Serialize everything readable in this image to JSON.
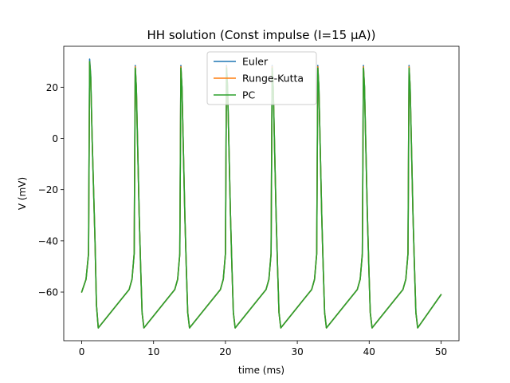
{
  "chart_data": {
    "type": "line",
    "title": "HH solution (Const impulse (I=15 μA))",
    "xlabel": "time (ms)",
    "ylabel": "V (mV)",
    "xlim": [
      -2.5,
      52.5
    ],
    "ylim": [
      -79,
      36
    ],
    "xticks": [
      0,
      10,
      20,
      30,
      40,
      50
    ],
    "yticks": [
      -60,
      -40,
      -20,
      0,
      20
    ],
    "xtick_labels": [
      "0",
      "10",
      "20",
      "30",
      "40",
      "50"
    ],
    "ytick_labels": [
      "−60",
      "−40",
      "−20",
      "0",
      "20"
    ],
    "grid": false,
    "legend_position": "top-center",
    "series": [
      {
        "name": "Euler",
        "color": "#1f77b4",
        "x": [
          0,
          0.6,
          0.95,
          1.1,
          1.25,
          1.45,
          1.65,
          1.85,
          2.05,
          2.3,
          6.6,
          7.0,
          7.3,
          7.45,
          7.6,
          7.8,
          8.0,
          8.2,
          8.4,
          8.65,
          12.95,
          13.35,
          13.65,
          13.8,
          13.95,
          14.15,
          14.35,
          14.55,
          14.75,
          15.0,
          19.3,
          19.7,
          20.0,
          20.15,
          20.3,
          20.5,
          20.7,
          20.9,
          21.1,
          21.35,
          25.65,
          26.05,
          26.35,
          26.5,
          26.65,
          26.85,
          27.05,
          27.25,
          27.45,
          27.7,
          32.0,
          32.4,
          32.7,
          32.85,
          33.0,
          33.2,
          33.4,
          33.6,
          33.8,
          34.05,
          38.35,
          38.75,
          39.05,
          39.2,
          39.35,
          39.55,
          39.75,
          39.95,
          40.15,
          40.4,
          44.7,
          45.1,
          45.4,
          45.55,
          45.7,
          45.9,
          46.1,
          46.3,
          46.5,
          46.75,
          50
        ],
        "y": [
          -60,
          -55,
          -45,
          31,
          25,
          0,
          -20,
          -40,
          -65,
          -74,
          -59,
          -55,
          -45,
          28.5,
          20,
          -5,
          -30,
          -50,
          -68,
          -74,
          -59,
          -55,
          -45,
          28.5,
          20,
          -5,
          -30,
          -50,
          -68,
          -74,
          -59,
          -55,
          -45,
          28.5,
          20,
          -5,
          -30,
          -50,
          -68,
          -74,
          -59,
          -55,
          -45,
          28.5,
          20,
          -5,
          -30,
          -50,
          -68,
          -74,
          -59,
          -55,
          -45,
          28.5,
          20,
          -5,
          -30,
          -50,
          -68,
          -74,
          -59,
          -55,
          -45,
          28.5,
          20,
          -5,
          -30,
          -50,
          -68,
          -74,
          -59,
          -55,
          -45,
          28.5,
          20,
          -5,
          -30,
          -50,
          -68,
          -74,
          -61
        ]
      },
      {
        "name": "Runge-Kutta",
        "color": "#ff7f0e",
        "x": [
          0,
          0.6,
          0.95,
          1.1,
          1.25,
          1.45,
          1.65,
          1.85,
          2.05,
          2.3,
          6.6,
          7.0,
          7.3,
          7.45,
          7.6,
          7.8,
          8.0,
          8.2,
          8.4,
          8.65,
          12.95,
          13.35,
          13.65,
          13.8,
          13.95,
          14.15,
          14.35,
          14.55,
          14.75,
          15.0,
          19.3,
          19.7,
          20.0,
          20.15,
          20.3,
          20.5,
          20.7,
          20.9,
          21.1,
          21.35,
          25.65,
          26.05,
          26.35,
          26.5,
          26.65,
          26.85,
          27.05,
          27.25,
          27.45,
          27.7,
          32.0,
          32.4,
          32.7,
          32.85,
          33.0,
          33.2,
          33.4,
          33.6,
          33.8,
          34.05,
          38.35,
          38.75,
          39.05,
          39.2,
          39.35,
          39.55,
          39.75,
          39.95,
          40.15,
          40.4,
          44.7,
          45.1,
          45.4,
          45.55,
          45.7,
          45.9,
          46.1,
          46.3,
          46.5,
          46.75,
          50
        ],
        "y": [
          -60,
          -55,
          -45,
          30,
          24,
          0,
          -20,
          -40,
          -65,
          -74,
          -59,
          -55,
          -45,
          28,
          20,
          -5,
          -30,
          -50,
          -68,
          -74,
          -59,
          -55,
          -45,
          28,
          20,
          -5,
          -30,
          -50,
          -68,
          -74,
          -59,
          -55,
          -45,
          28,
          20,
          -5,
          -30,
          -50,
          -68,
          -74,
          -59,
          -55,
          -45,
          28,
          20,
          -5,
          -30,
          -50,
          -68,
          -74,
          -59,
          -55,
          -45,
          28,
          20,
          -5,
          -30,
          -50,
          -68,
          -74,
          -59,
          -55,
          -45,
          28,
          20,
          -5,
          -30,
          -50,
          -68,
          -74,
          -59,
          -55,
          -45,
          28,
          20,
          -5,
          -30,
          -50,
          -68,
          -74,
          -61
        ]
      },
      {
        "name": "PC",
        "color": "#2ca02c",
        "x": [
          0,
          0.6,
          0.95,
          1.1,
          1.25,
          1.45,
          1.65,
          1.85,
          2.05,
          2.3,
          6.6,
          7.0,
          7.3,
          7.45,
          7.6,
          7.8,
          8.0,
          8.2,
          8.4,
          8.65,
          12.95,
          13.35,
          13.65,
          13.8,
          13.95,
          14.15,
          14.35,
          14.55,
          14.75,
          15.0,
          19.3,
          19.7,
          20.0,
          20.15,
          20.3,
          20.5,
          20.7,
          20.9,
          21.1,
          21.35,
          25.65,
          26.05,
          26.35,
          26.5,
          26.65,
          26.85,
          27.05,
          27.25,
          27.45,
          27.7,
          32.0,
          32.4,
          32.7,
          32.85,
          33.0,
          33.2,
          33.4,
          33.6,
          33.8,
          34.05,
          38.35,
          38.75,
          39.05,
          39.2,
          39.35,
          39.55,
          39.75,
          39.95,
          40.15,
          40.4,
          44.7,
          45.1,
          45.4,
          45.55,
          45.7,
          45.9,
          46.1,
          46.3,
          46.5,
          46.75,
          50
        ],
        "y": [
          -60,
          -55,
          -45,
          30,
          24,
          0,
          -20,
          -40,
          -65,
          -74,
          -59,
          -55,
          -45,
          27.5,
          20,
          -5,
          -30,
          -50,
          -68,
          -74,
          -59,
          -55,
          -45,
          27.5,
          20,
          -5,
          -30,
          -50,
          -68,
          -74,
          -59,
          -55,
          -45,
          27.5,
          20,
          -5,
          -30,
          -50,
          -68,
          -74,
          -59,
          -55,
          -45,
          27.5,
          20,
          -5,
          -30,
          -50,
          -68,
          -74,
          -59,
          -55,
          -45,
          27.5,
          20,
          -5,
          -30,
          -50,
          -68,
          -74,
          -59,
          -55,
          -45,
          27.5,
          20,
          -5,
          -30,
          -50,
          -68,
          -74,
          -59,
          -55,
          -45,
          27.5,
          20,
          -5,
          -30,
          -50,
          -68,
          -74,
          -61
        ]
      }
    ]
  }
}
